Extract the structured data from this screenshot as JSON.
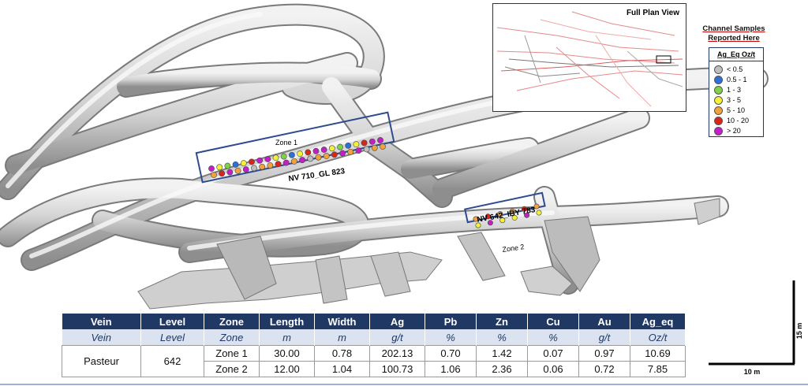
{
  "inset": {
    "title": "Full Plan View"
  },
  "legend": {
    "heading_line1": "Channel Samples",
    "heading_line2": "Reported Here",
    "title": "Ag_Eq Oz/t",
    "items": [
      {
        "label": "< 0.5",
        "color": "#bfbfbf"
      },
      {
        "label": "0.5 - 1",
        "color": "#2e6fd8"
      },
      {
        "label": "1 - 3",
        "color": "#7fd14a"
      },
      {
        "label": "3 - 5",
        "color": "#f2f03a"
      },
      {
        "label": "5 - 10",
        "color": "#f2a23a"
      },
      {
        "label": "10 - 20",
        "color": "#d8261c"
      },
      {
        "label": "> 20",
        "color": "#c21fc8"
      }
    ]
  },
  "labels": {
    "zone1": "Zone 1",
    "zone2": "Zone 2",
    "drift1": "NV 710_GL 823",
    "drift2": "NV 642_IBY 783"
  },
  "scale": {
    "vertical": "15 m",
    "horizontal": "10 m"
  },
  "table": {
    "headers": [
      "Vein",
      "Level",
      "Zone",
      "Length",
      "Width",
      "Ag",
      "Pb",
      "Zn",
      "Cu",
      "Au",
      "Ag_eq"
    ],
    "units": [
      "Vein",
      "Level",
      "Zone",
      "m",
      "m",
      "g/t",
      "%",
      "%",
      "%",
      "g/t",
      "Oz/t"
    ],
    "vein": "Pasteur",
    "level": "642",
    "rows": [
      {
        "zone": "Zone 1",
        "length": "30.00",
        "width": "0.78",
        "ag": "202.13",
        "pb": "0.70",
        "zn": "1.42",
        "cu": "0.07",
        "au": "0.97",
        "ag_eq": "10.69"
      },
      {
        "zone": "Zone 2",
        "length": "12.00",
        "width": "1.04",
        "ag": "100.73",
        "pb": "1.06",
        "zn": "2.36",
        "cu": "0.06",
        "au": "0.72",
        "ag_eq": "7.85"
      }
    ]
  },
  "colors": {
    "table_header": "#1f3864",
    "table_units": "#dbe3f1",
    "box_outline": "#2f4b8f"
  }
}
